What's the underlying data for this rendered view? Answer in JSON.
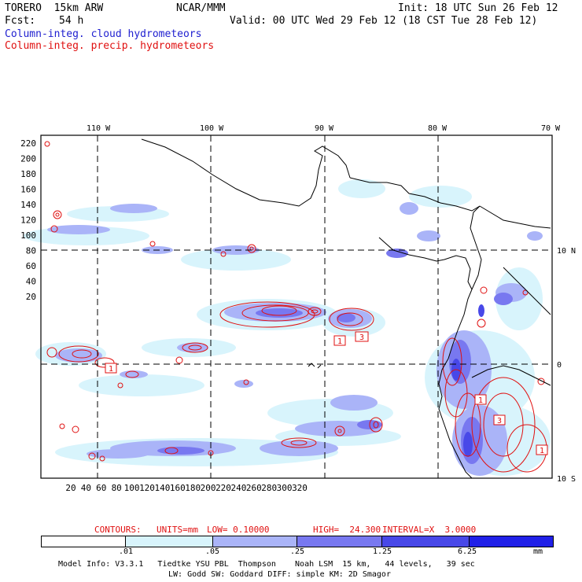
{
  "header": {
    "model": "TORERO  15km ARW",
    "org": "NCAR/MMM",
    "init": "Init: 18 UTC Sun 26 Feb 12",
    "fcst_label": "Fcst:",
    "fcst_value": "54 h",
    "valid": "Valid: 00 UTC Wed 29 Feb 12 (18 CST Tue 28 Feb 12)",
    "field_cloud": "Column-integ. cloud hydrometeors",
    "field_precip": "Column-integ. precip. hydrometeors"
  },
  "colors": {
    "cloud_text": "#2020d0",
    "precip_text": "#e01010",
    "precip_contour": "#e01010",
    "coast": "#000000"
  },
  "axes": {
    "lon_labels": [
      "110 W",
      "100 W",
      "90 W",
      "80 W",
      "70 W"
    ],
    "lat_labels": [
      "10 N",
      "0",
      "10 S"
    ],
    "y_ticks": [
      "220",
      "200",
      "180",
      "160",
      "140",
      "120",
      "100",
      "80",
      "60",
      "40",
      "20"
    ],
    "x_ticks": [
      "20",
      "40",
      "60",
      "80",
      "100",
      "120",
      "140",
      "160",
      "180",
      "200",
      "220",
      "240",
      "260",
      "280",
      "300",
      "320"
    ]
  },
  "contours": {
    "label": "CONTOURS:",
    "units": "UNITS=mm",
    "low": "LOW= 0.10000",
    "high": "HIGH=  24.300",
    "interval": "INTERVAL=X  3.0000",
    "box_labels": [
      "1",
      "3",
      "1",
      "1",
      "3",
      "1"
    ]
  },
  "colorbar": {
    "labels": [
      ".01",
      ".05",
      ".25",
      "1.25",
      "6.25"
    ],
    "units": "mm",
    "colors": [
      "#ffffff",
      "#d8f4fc",
      "#aab4f8",
      "#7878f0",
      "#4848e8",
      "#2020e8"
    ]
  },
  "footer": {
    "line1": "Model Info: V3.3.1   Tiedtke YSU PBL  Thompson    Noah LSM  15 km,   44 levels,   39 sec",
    "line2": "LW: Godd SW: Goddard DIFF: simple KM: 2D Smagor"
  }
}
